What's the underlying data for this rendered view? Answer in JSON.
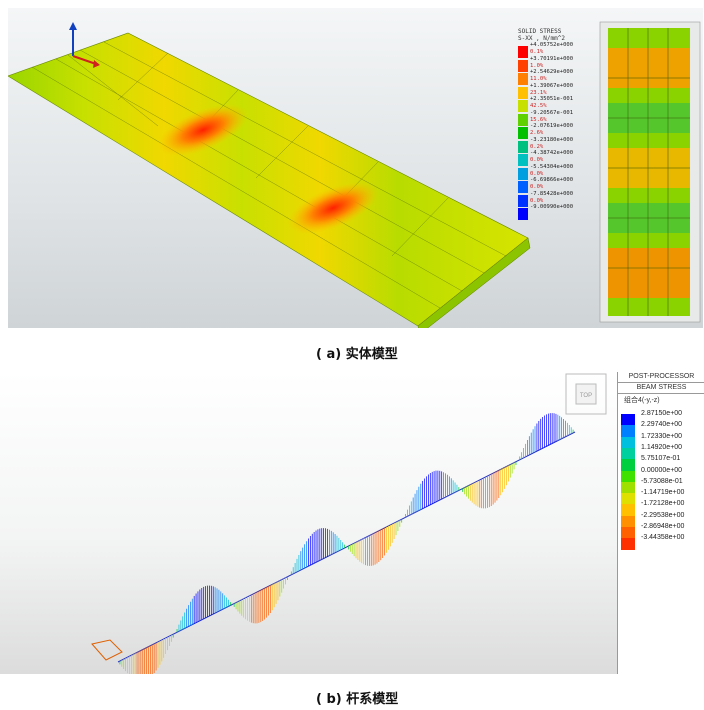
{
  "panel_a": {
    "caption": "( a) 实体模型",
    "legend": {
      "title_line1": "SOLID STRESS",
      "title_line2": "S-XX , N/mm^2",
      "entries": [
        {
          "value": "+4.05752e+000",
          "color": "#ff0000",
          "pct": "0.1%"
        },
        {
          "value": "+3.70191e+000",
          "color": "#ff4000",
          "pct": "1.0%"
        },
        {
          "value": "+2.54629e+000",
          "color": "#ff8000",
          "pct": "11.0%"
        },
        {
          "value": "+1.39067e+000",
          "color": "#ffc000",
          "pct": "23.1%"
        },
        {
          "value": "+2.35051e-001",
          "color": "#c8e000",
          "pct": "42.5%"
        },
        {
          "value": "-9.20567e-001",
          "color": "#5fd000",
          "pct": "15.6%"
        },
        {
          "value": "-2.07619e+000",
          "color": "#00c000",
          "pct": "2.6%"
        },
        {
          "value": "-3.23180e+000",
          "color": "#00c080",
          "pct": "0.2%"
        },
        {
          "value": "-4.38742e+000",
          "color": "#00c0c0",
          "pct": "0.0%"
        },
        {
          "value": "-5.54304e+000",
          "color": "#00a0e0",
          "pct": "0.0%"
        },
        {
          "value": "-6.69866e+000",
          "color": "#0060ff",
          "pct": "0.0%"
        },
        {
          "value": "-7.85428e+000",
          "color": "#0030ff",
          "pct": "0.0%"
        },
        {
          "value": "-9.00990e+000",
          "color": "#0000ff",
          "pct": ""
        }
      ]
    }
  },
  "panel_b": {
    "caption": "( b) 杆系模型",
    "legend": {
      "title1": "POST-PROCESSOR",
      "title2": "BEAM STRESS",
      "title3": "组合4(-y,-z)",
      "entries": [
        {
          "value": "2.87150e+00",
          "color": "#0000ff"
        },
        {
          "value": "2.29740e+00",
          "color": "#0080ff"
        },
        {
          "value": "1.72330e+00",
          "color": "#00c0e0"
        },
        {
          "value": "1.14920e+00",
          "color": "#00d0a0"
        },
        {
          "value": "5.75107e-01",
          "color": "#00d040"
        },
        {
          "value": "0.00000e+00",
          "color": "#40e000"
        },
        {
          "value": "-5.73088e-01",
          "color": "#a0e000"
        },
        {
          "value": "-1.14719e+00",
          "color": "#e0e000"
        },
        {
          "value": "-1.72128e+00",
          "color": "#ffc000"
        },
        {
          "value": "-2.29538e+00",
          "color": "#ff9000"
        },
        {
          "value": "-2.86948e+00",
          "color": "#ff6000"
        },
        {
          "value": "-3.44358e+00",
          "color": "#ff3000"
        }
      ]
    },
    "view_cube_label": "TOP"
  }
}
